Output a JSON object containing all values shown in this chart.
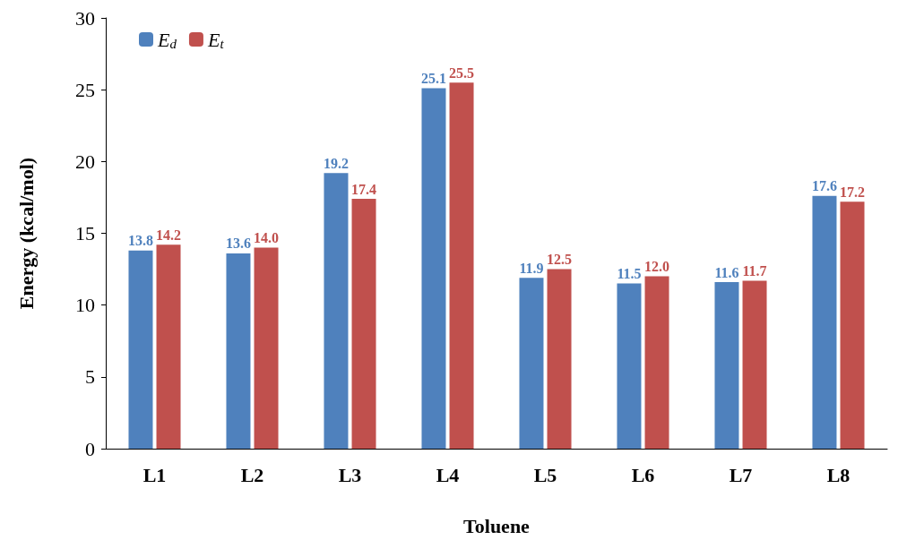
{
  "chart_data": {
    "type": "bar",
    "xlabel": "Toluene",
    "ylabel": "Energy (kcal/mol)",
    "categories": [
      "L1",
      "L2",
      "L3",
      "L4",
      "L5",
      "L6",
      "L7",
      "L8"
    ],
    "series": [
      {
        "name": "E$_{d}$",
        "color": "#4f81bd",
        "values": [
          13.8,
          13.6,
          19.2,
          25.1,
          11.9,
          11.5,
          11.6,
          17.6
        ],
        "value_labels": [
          "13.8",
          "13.6",
          "19.2",
          "25.1",
          "11.9",
          "11.5",
          "11.6",
          "17.6"
        ]
      },
      {
        "name": "E$_{t}$",
        "color": "#c0504d",
        "values": [
          14.2,
          14.0,
          17.4,
          25.5,
          12.5,
          12.0,
          11.7,
          17.2
        ],
        "value_labels": [
          "14.2",
          "14.0",
          "17.4",
          "25.5",
          "12.5",
          "12.0",
          "11.7",
          "17.2"
        ]
      }
    ],
    "ylim": [
      0,
      30
    ],
    "yticks": [
      0,
      5,
      10,
      15,
      20,
      25,
      30
    ],
    "grid": false,
    "legend": "top left"
  }
}
